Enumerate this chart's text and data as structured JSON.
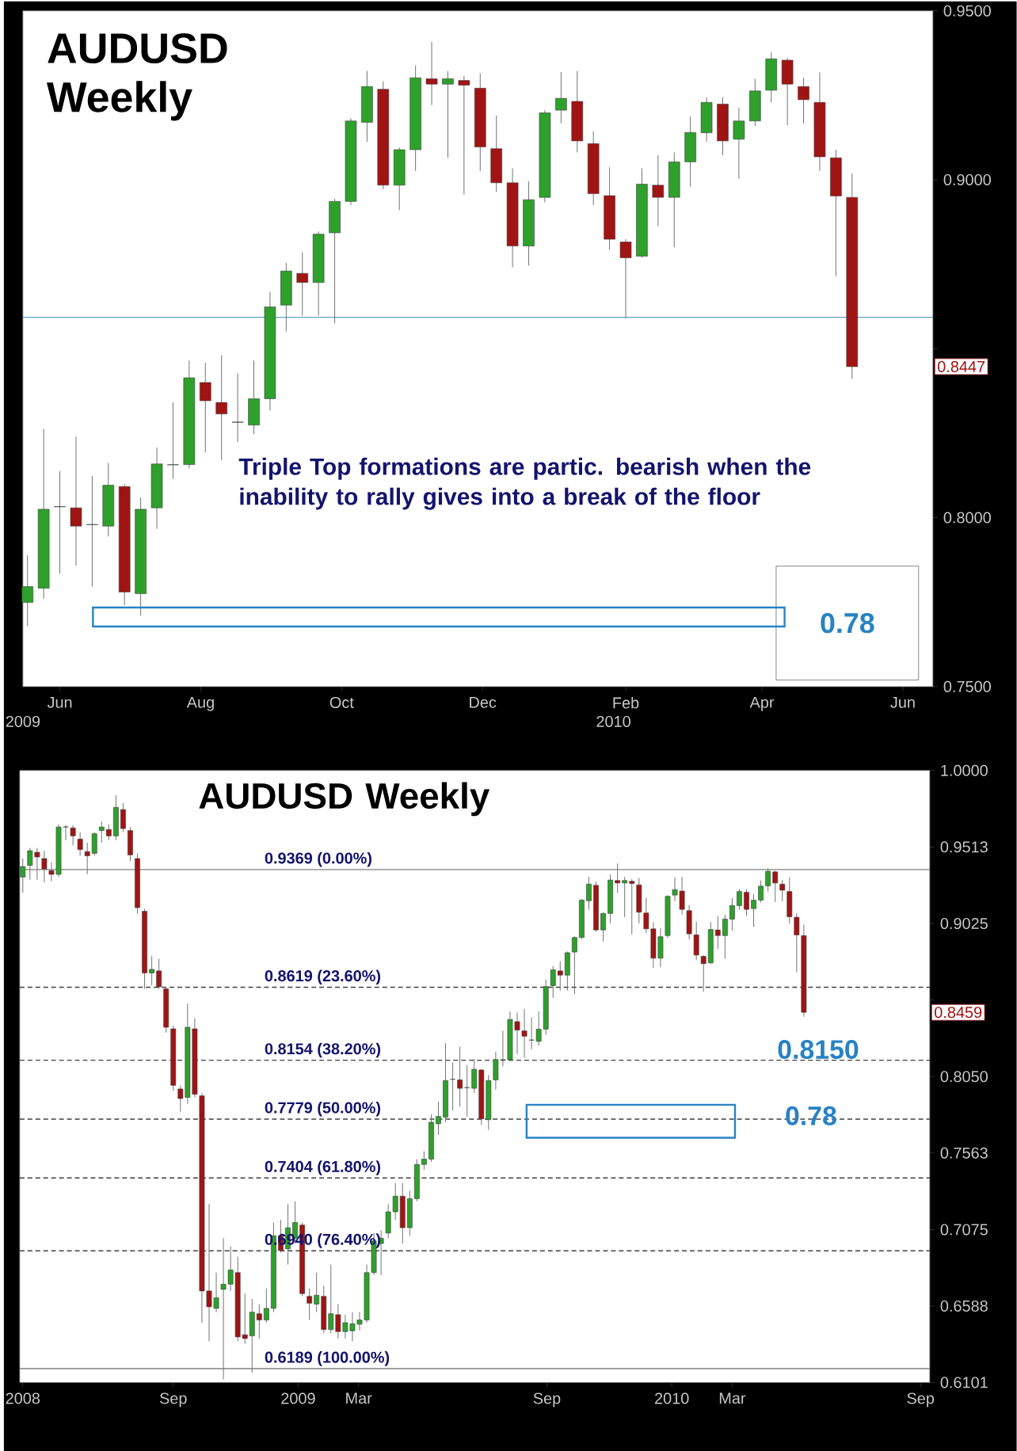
{
  "chart_data": [
    {
      "type": "candlestick",
      "title": "AUDUSD Weekly",
      "x": [
        "2009-05-18",
        "2009-05-25",
        "2009-06-01",
        "2009-06-08",
        "2009-06-15",
        "2009-06-22",
        "2009-06-29",
        "2009-07-06",
        "2009-07-13",
        "2009-07-20",
        "2009-07-27",
        "2009-08-03",
        "2009-08-10",
        "2009-08-17",
        "2009-08-24",
        "2009-08-31",
        "2009-09-07",
        "2009-09-14",
        "2009-09-21",
        "2009-09-28",
        "2009-10-05",
        "2009-10-12",
        "2009-10-19",
        "2009-10-26",
        "2009-11-02",
        "2009-11-09",
        "2009-11-16",
        "2009-11-23",
        "2009-11-30",
        "2009-12-07",
        "2009-12-14",
        "2009-12-21",
        "2009-12-28",
        "2010-01-04",
        "2010-01-11",
        "2010-01-18",
        "2010-01-25",
        "2010-02-01",
        "2010-02-08",
        "2010-02-15",
        "2010-02-22",
        "2010-03-01",
        "2010-03-08",
        "2010-03-15",
        "2010-03-22",
        "2010-03-29",
        "2010-04-05",
        "2010-04-12",
        "2010-04-19",
        "2010-04-26",
        "2010-05-03",
        "2010-05-10"
      ],
      "ohlc": [
        [
          0.7749,
          0.7889,
          0.7679,
          0.7796
        ],
        [
          0.7791,
          0.8263,
          0.776,
          0.8025
        ],
        [
          0.8032,
          0.8138,
          0.7834,
          0.8033
        ],
        [
          0.8029,
          0.824,
          0.7858,
          0.7975
        ],
        [
          0.7979,
          0.8123,
          0.7796,
          0.798
        ],
        [
          0.7975,
          0.8162,
          0.7944,
          0.8096
        ],
        [
          0.8092,
          0.8099,
          0.7741,
          0.778
        ],
        [
          0.7775,
          0.806,
          0.771,
          0.8025
        ],
        [
          0.8029,
          0.8208,
          0.7967,
          0.8159
        ],
        [
          0.8156,
          0.8341,
          0.8115,
          0.8157
        ],
        [
          0.8157,
          0.8465,
          0.8146,
          0.8414
        ],
        [
          0.84,
          0.8458,
          0.8193,
          0.8346
        ],
        [
          0.8341,
          0.8481,
          0.817,
          0.8307
        ],
        [
          0.8282,
          0.8427,
          0.8224,
          0.8283
        ],
        [
          0.8274,
          0.8465,
          0.8247,
          0.8352
        ],
        [
          0.8352,
          0.8668,
          0.8317,
          0.8624
        ],
        [
          0.8629,
          0.8754,
          0.8551,
          0.873
        ],
        [
          0.8723,
          0.8785,
          0.8598,
          0.8696
        ],
        [
          0.8696,
          0.8847,
          0.8598,
          0.8839
        ],
        [
          0.8843,
          0.8944,
          0.8575,
          0.8936
        ],
        [
          0.8936,
          0.9182,
          0.8925,
          0.9174
        ],
        [
          0.917,
          0.9322,
          0.9112,
          0.9276
        ],
        [
          0.9268,
          0.9291,
          0.8972,
          0.8984
        ],
        [
          0.8984,
          0.9096,
          0.891,
          0.9089
        ],
        [
          0.9089,
          0.9338,
          0.9026,
          0.9302
        ],
        [
          0.9299,
          0.9408,
          0.9221,
          0.9283
        ],
        [
          0.9283,
          0.9322,
          0.9065,
          0.9299
        ],
        [
          0.9294,
          0.9307,
          0.8956,
          0.928
        ],
        [
          0.9271,
          0.9315,
          0.9026,
          0.9097
        ],
        [
          0.9092,
          0.919,
          0.8964,
          0.8991
        ],
        [
          0.8991,
          0.9034,
          0.8741,
          0.8804
        ],
        [
          0.8804,
          0.8995,
          0.8746,
          0.8941
        ],
        [
          0.8948,
          0.9206,
          0.8933,
          0.9198
        ],
        [
          0.9206,
          0.9319,
          0.9167,
          0.9241
        ],
        [
          0.9232,
          0.9322,
          0.9081,
          0.9115
        ],
        [
          0.9107,
          0.9143,
          0.8925,
          0.8959
        ],
        [
          0.8953,
          0.9037,
          0.8793,
          0.8824
        ],
        [
          0.8816,
          0.8824,
          0.859,
          0.8769
        ],
        [
          0.8774,
          0.9034,
          0.8769,
          0.8987
        ],
        [
          0.8984,
          0.9073,
          0.8863,
          0.8948
        ],
        [
          0.8948,
          0.9081,
          0.88,
          0.9053
        ],
        [
          0.9053,
          0.9187,
          0.898,
          0.914
        ],
        [
          0.9139,
          0.9244,
          0.9112,
          0.9229
        ],
        [
          0.9224,
          0.9244,
          0.9073,
          0.9115
        ],
        [
          0.912,
          0.9213,
          0.9003,
          0.9174
        ],
        [
          0.9174,
          0.9299,
          0.9159,
          0.9263
        ],
        [
          0.9265,
          0.9377,
          0.9229,
          0.9358
        ],
        [
          0.9354,
          0.9361,
          0.9162,
          0.9283
        ],
        [
          0.9276,
          0.9302,
          0.9167,
          0.9237
        ],
        [
          0.9229,
          0.9318,
          0.9026,
          0.9068
        ],
        [
          0.9065,
          0.9089,
          0.8715,
          0.8952
        ],
        [
          0.8948,
          0.9019,
          0.8411,
          0.8447
        ]
      ],
      "xlim": [
        "2009-05-16",
        "2010-06-14"
      ],
      "xticks": [
        {
          "value": "2009-06-01",
          "label": "Jun"
        },
        {
          "value": "2009-08-01",
          "label": "Aug"
        },
        {
          "value": "2009-10-01",
          "label": "Oct"
        },
        {
          "value": "2009-12-01",
          "label": "Dec"
        },
        {
          "value": "2010-02-01",
          "label": "Feb"
        },
        {
          "value": "2010-04-01",
          "label": "Apr"
        },
        {
          "value": "2010-06-01",
          "label": "Jun"
        }
      ],
      "ylim": [
        0.75,
        0.95
      ],
      "yticks": [
        {
          "value": 0.75,
          "label": "0.7500"
        },
        {
          "value": 0.8,
          "label": "0.8000"
        },
        {
          "value": 0.85,
          "label": null
        },
        {
          "value": 0.9,
          "label": "0.9000"
        },
        {
          "value": 0.95,
          "label": "0.9500"
        }
      ],
      "ref_lines": [
        {
          "axis": "y",
          "value": 0.8593,
          "color": "#5ba3c8",
          "line_style": "solid"
        }
      ],
      "annotations": [
        "Triple Top formations are partic. bearish when the inability to rally gives into a break of the floor",
        "0.78",
        {
          "text": "0.8447",
          "y": 0.8447
        },
        "2009",
        "2010"
      ]
    },
    {
      "type": "candlestick",
      "title": "AUDUSD Weekly",
      "x": [
        "2008-04-07",
        "2008-04-14",
        "2008-04-21",
        "2008-04-28",
        "2008-05-05",
        "2008-05-12",
        "2008-05-19",
        "2008-05-26",
        "2008-06-02",
        "2008-06-09",
        "2008-06-16",
        "2008-06-23",
        "2008-06-30",
        "2008-07-07",
        "2008-07-14",
        "2008-07-21",
        "2008-07-28",
        "2008-08-04",
        "2008-08-11",
        "2008-08-18",
        "2008-08-25",
        "2008-09-01",
        "2008-09-08",
        "2008-09-15",
        "2008-09-22",
        "2008-09-29",
        "2008-10-06",
        "2008-10-13",
        "2008-10-20",
        "2008-10-27",
        "2008-11-03",
        "2008-11-10",
        "2008-11-17",
        "2008-11-24",
        "2008-12-01",
        "2008-12-08",
        "2008-12-15",
        "2008-12-22",
        "2008-12-29",
        "2009-01-05",
        "2009-01-12",
        "2009-01-19",
        "2009-01-26",
        "2009-02-02",
        "2009-02-09",
        "2009-02-16",
        "2009-02-23",
        "2009-03-02",
        "2009-03-09",
        "2009-03-16",
        "2009-03-23",
        "2009-03-30",
        "2009-04-06",
        "2009-04-13",
        "2009-04-20",
        "2009-04-27",
        "2009-05-04",
        "2009-05-11",
        "2009-05-18",
        "2009-05-25",
        "2009-06-01",
        "2009-06-08",
        "2009-06-15",
        "2009-06-22",
        "2009-06-29",
        "2009-07-06",
        "2009-07-13",
        "2009-07-20",
        "2009-07-27",
        "2009-08-03",
        "2009-08-10",
        "2009-08-17",
        "2009-08-24",
        "2009-08-31",
        "2009-09-07",
        "2009-09-14",
        "2009-09-21",
        "2009-09-28",
        "2009-10-05",
        "2009-10-12",
        "2009-10-19",
        "2009-10-26",
        "2009-11-02",
        "2009-11-09",
        "2009-11-16",
        "2009-11-23",
        "2009-11-30",
        "2009-12-07",
        "2009-12-14",
        "2009-12-21",
        "2009-12-28",
        "2010-01-04",
        "2010-01-11",
        "2010-01-18",
        "2010-01-25",
        "2010-02-01",
        "2010-02-08",
        "2010-02-15",
        "2010-02-22",
        "2010-03-01",
        "2010-03-08",
        "2010-03-15",
        "2010-03-22",
        "2010-03-29",
        "2010-04-05",
        "2010-04-12",
        "2010-04-19",
        "2010-04-26",
        "2010-05-03",
        "2010-05-10"
      ],
      "ohlc": [
        [
          0.9321,
          0.9439,
          0.922,
          0.9388
        ],
        [
          0.9395,
          0.9506,
          0.9304,
          0.9489
        ],
        [
          0.9479,
          0.9506,
          0.9304,
          0.9449
        ],
        [
          0.9439,
          0.9489,
          0.9288,
          0.9372
        ],
        [
          0.9362,
          0.9415,
          0.9294,
          0.9338
        ],
        [
          0.9338,
          0.9657,
          0.9321,
          0.964
        ],
        [
          0.964,
          0.9651,
          0.9556,
          0.9641
        ],
        [
          0.9634,
          0.9651,
          0.9523,
          0.9583
        ],
        [
          0.9563,
          0.9607,
          0.9456,
          0.9496
        ],
        [
          0.9483,
          0.954,
          0.9338,
          0.9456
        ],
        [
          0.9472,
          0.9607,
          0.9456,
          0.9597
        ],
        [
          0.9617,
          0.9674,
          0.954,
          0.964
        ],
        [
          0.9624,
          0.9657,
          0.9556,
          0.9583
        ],
        [
          0.9583,
          0.9842,
          0.9556,
          0.9765
        ],
        [
          0.9751,
          0.9792,
          0.9607,
          0.963
        ],
        [
          0.9617,
          0.964,
          0.9422,
          0.9462
        ],
        [
          0.9439,
          0.9472,
          0.9086,
          0.9126
        ],
        [
          0.9103,
          0.912,
          0.8609,
          0.871
        ],
        [
          0.871,
          0.8817,
          0.8632,
          0.8733
        ],
        [
          0.8723,
          0.88,
          0.8609,
          0.8622
        ],
        [
          0.8609,
          0.8622,
          0.833,
          0.8364
        ],
        [
          0.8354,
          0.8374,
          0.796,
          0.7994
        ],
        [
          0.7971,
          0.7994,
          0.7826,
          0.791
        ],
        [
          0.7917,
          0.8515,
          0.7876,
          0.8364
        ],
        [
          0.8354,
          0.8421,
          0.7917,
          0.7937
        ],
        [
          0.7927,
          0.7944,
          0.6482,
          0.6684
        ],
        [
          0.6684,
          0.7238,
          0.6364,
          0.6583
        ],
        [
          0.6573,
          0.6801,
          0.6549,
          0.664
        ],
        [
          0.6694,
          0.702,
          0.612,
          0.6727
        ],
        [
          0.6727,
          0.6969,
          0.6684,
          0.6818
        ],
        [
          0.6801,
          0.6902,
          0.6364,
          0.6391
        ],
        [
          0.6405,
          0.6667,
          0.6348,
          0.6381
        ],
        [
          0.6398,
          0.6633,
          0.6163,
          0.6549
        ],
        [
          0.6539,
          0.66,
          0.6381,
          0.6499
        ],
        [
          0.6499,
          0.67,
          0.6482,
          0.6573
        ],
        [
          0.6573,
          0.712,
          0.6549,
          0.7036
        ],
        [
          0.7036,
          0.7137,
          0.6929,
          0.6942
        ],
        [
          0.6952,
          0.7238,
          0.6852,
          0.7087
        ],
        [
          0.702,
          0.7255,
          0.6986,
          0.712
        ],
        [
          0.7104,
          0.712,
          0.665,
          0.6667
        ],
        [
          0.665,
          0.67,
          0.6499,
          0.6606
        ],
        [
          0.66,
          0.6801,
          0.6549,
          0.6657
        ],
        [
          0.665,
          0.6717,
          0.6415,
          0.6438
        ],
        [
          0.6438,
          0.6852,
          0.6415,
          0.6539
        ],
        [
          0.6533,
          0.66,
          0.6381,
          0.6425
        ],
        [
          0.6425,
          0.6533,
          0.6381,
          0.6482
        ],
        [
          0.643,
          0.6549,
          0.6364,
          0.6475
        ],
        [
          0.6472,
          0.6549,
          0.6432,
          0.6499
        ],
        [
          0.6499,
          0.6852,
          0.6482,
          0.6801
        ],
        [
          0.6801,
          0.7053,
          0.6785,
          0.7003
        ],
        [
          0.6986,
          0.707,
          0.6785,
          0.702
        ],
        [
          0.7053,
          0.7238,
          0.702,
          0.7188
        ],
        [
          0.7188,
          0.7372,
          0.7137,
          0.7288
        ],
        [
          0.7288,
          0.7372,
          0.6986,
          0.7087
        ],
        [
          0.7087,
          0.7322,
          0.7036,
          0.7272
        ],
        [
          0.7272,
          0.7524,
          0.7255,
          0.749
        ],
        [
          0.749,
          0.7574,
          0.7457,
          0.7524
        ],
        [
          0.7524,
          0.7809,
          0.7507,
          0.7759
        ],
        [
          0.7749,
          0.7889,
          0.7679,
          0.7796
        ],
        [
          0.7791,
          0.8263,
          0.776,
          0.8025
        ],
        [
          0.8032,
          0.8138,
          0.7834,
          0.8033
        ],
        [
          0.8029,
          0.824,
          0.7858,
          0.7975
        ],
        [
          0.7979,
          0.8123,
          0.7796,
          0.798
        ],
        [
          0.7975,
          0.8162,
          0.7944,
          0.8096
        ],
        [
          0.8092,
          0.8099,
          0.7741,
          0.778
        ],
        [
          0.7775,
          0.806,
          0.771,
          0.8025
        ],
        [
          0.8029,
          0.8208,
          0.7967,
          0.8159
        ],
        [
          0.8156,
          0.8341,
          0.8115,
          0.8157
        ],
        [
          0.8157,
          0.8465,
          0.8146,
          0.8414
        ],
        [
          0.84,
          0.8458,
          0.8193,
          0.8346
        ],
        [
          0.8341,
          0.8481,
          0.817,
          0.8307
        ],
        [
          0.8282,
          0.8427,
          0.8224,
          0.8283
        ],
        [
          0.8274,
          0.8465,
          0.8247,
          0.8352
        ],
        [
          0.8352,
          0.8668,
          0.8317,
          0.8624
        ],
        [
          0.8629,
          0.8754,
          0.8551,
          0.873
        ],
        [
          0.8723,
          0.8785,
          0.8598,
          0.8696
        ],
        [
          0.8696,
          0.8847,
          0.8598,
          0.8839
        ],
        [
          0.8843,
          0.8944,
          0.8575,
          0.8936
        ],
        [
          0.8936,
          0.9182,
          0.8925,
          0.9174
        ],
        [
          0.917,
          0.9322,
          0.9112,
          0.9276
        ],
        [
          0.9268,
          0.9291,
          0.8972,
          0.8984
        ],
        [
          0.8984,
          0.9096,
          0.891,
          0.9089
        ],
        [
          0.9089,
          0.9338,
          0.9026,
          0.9302
        ],
        [
          0.9299,
          0.9408,
          0.9221,
          0.9283
        ],
        [
          0.9283,
          0.9322,
          0.9065,
          0.9299
        ],
        [
          0.9294,
          0.9307,
          0.8956,
          0.928
        ],
        [
          0.9271,
          0.9315,
          0.9026,
          0.9097
        ],
        [
          0.9092,
          0.919,
          0.8964,
          0.8991
        ],
        [
          0.8991,
          0.9034,
          0.8741,
          0.8804
        ],
        [
          0.8804,
          0.8995,
          0.8746,
          0.8941
        ],
        [
          0.8948,
          0.9206,
          0.8933,
          0.9198
        ],
        [
          0.9206,
          0.9319,
          0.9167,
          0.9241
        ],
        [
          0.9232,
          0.9322,
          0.9081,
          0.9115
        ],
        [
          0.9107,
          0.9143,
          0.8925,
          0.8959
        ],
        [
          0.8953,
          0.9037,
          0.8793,
          0.8824
        ],
        [
          0.8816,
          0.8824,
          0.859,
          0.8769
        ],
        [
          0.8774,
          0.9034,
          0.8769,
          0.8987
        ],
        [
          0.8984,
          0.9073,
          0.8863,
          0.8948
        ],
        [
          0.8948,
          0.9081,
          0.88,
          0.9053
        ],
        [
          0.9053,
          0.9187,
          0.898,
          0.914
        ],
        [
          0.9139,
          0.9244,
          0.9112,
          0.9229
        ],
        [
          0.9224,
          0.9244,
          0.9073,
          0.9115
        ],
        [
          0.912,
          0.9213,
          0.9003,
          0.9174
        ],
        [
          0.9174,
          0.9299,
          0.9159,
          0.9263
        ],
        [
          0.9265,
          0.9377,
          0.9229,
          0.9358
        ],
        [
          0.9354,
          0.9361,
          0.9162,
          0.9283
        ],
        [
          0.9276,
          0.9302,
          0.9167,
          0.9237
        ],
        [
          0.9229,
          0.9318,
          0.9026,
          0.9068
        ],
        [
          0.9065,
          0.9089,
          0.8715,
          0.8952
        ],
        [
          0.8948,
          0.9019,
          0.8431,
          0.8459
        ]
      ],
      "xlim": [
        "2008-04-04",
        "2010-09-10"
      ],
      "xticks": [
        {
          "value": "2008-04-07",
          "label": "2008"
        },
        {
          "value": "2008-09-01",
          "label": "Sep"
        },
        {
          "value": "2009-01-01",
          "label": "2009"
        },
        {
          "value": "2009-03-01",
          "label": "Mar"
        },
        {
          "value": "2009-09-01",
          "label": "Sep"
        },
        {
          "value": "2010-01-01",
          "label": "2010"
        },
        {
          "value": "2010-03-01",
          "label": "Mar"
        },
        {
          "value": "2010-09-01",
          "label": "Sep"
        }
      ],
      "ylim": [
        0.6101,
        1.0
      ],
      "yticks": [
        {
          "value": 0.6101,
          "label": "0.6101"
        },
        {
          "value": 0.6588,
          "label": "0.6588"
        },
        {
          "value": 0.7075,
          "label": "0.7075"
        },
        {
          "value": 0.7563,
          "label": "0.7563"
        },
        {
          "value": 0.805,
          "label": "0.8050"
        },
        {
          "value": 0.8538,
          "label": null
        },
        {
          "value": 0.9025,
          "label": "0.9025"
        },
        {
          "value": 0.9513,
          "label": "0.9513"
        },
        {
          "value": 1.0,
          "label": "1.0000"
        }
      ],
      "ref_lines": [
        {
          "axis": "y",
          "value": 0.9369,
          "label": "0.9369  (0.00%)",
          "color": "#808080",
          "line_style": "solid"
        },
        {
          "axis": "y",
          "value": 0.8619,
          "label": "0.8619  (23.60%)",
          "color": "#404040",
          "line_style": "dashed"
        },
        {
          "axis": "y",
          "value": 0.8154,
          "label": "0.8154  (38.20%)",
          "color": "#404040",
          "line_style": "dashed"
        },
        {
          "axis": "y",
          "value": 0.7779,
          "label": "0.7779  (50.00%)",
          "color": "#404040",
          "line_style": "dashed"
        },
        {
          "axis": "y",
          "value": 0.7404,
          "label": "0.7404  (61.80%)",
          "color": "#404040",
          "line_style": "dashed"
        },
        {
          "axis": "y",
          "value": 0.694,
          "label": "0.6940  (76.40%)",
          "color": "#404040",
          "line_style": "dashed"
        },
        {
          "axis": "y",
          "value": 0.6189,
          "label": "0.6189  (100.00%)",
          "color": "#808080",
          "line_style": "solid"
        }
      ],
      "annotations": [
        {
          "text": "0.8150",
          "x": "2010-05-24",
          "y": 0.815
        },
        {
          "text": "0.78",
          "x": "2010-05-17",
          "y": 0.78
        },
        {
          "text": "0.8459",
          "y": 0.8459
        }
      ]
    }
  ]
}
